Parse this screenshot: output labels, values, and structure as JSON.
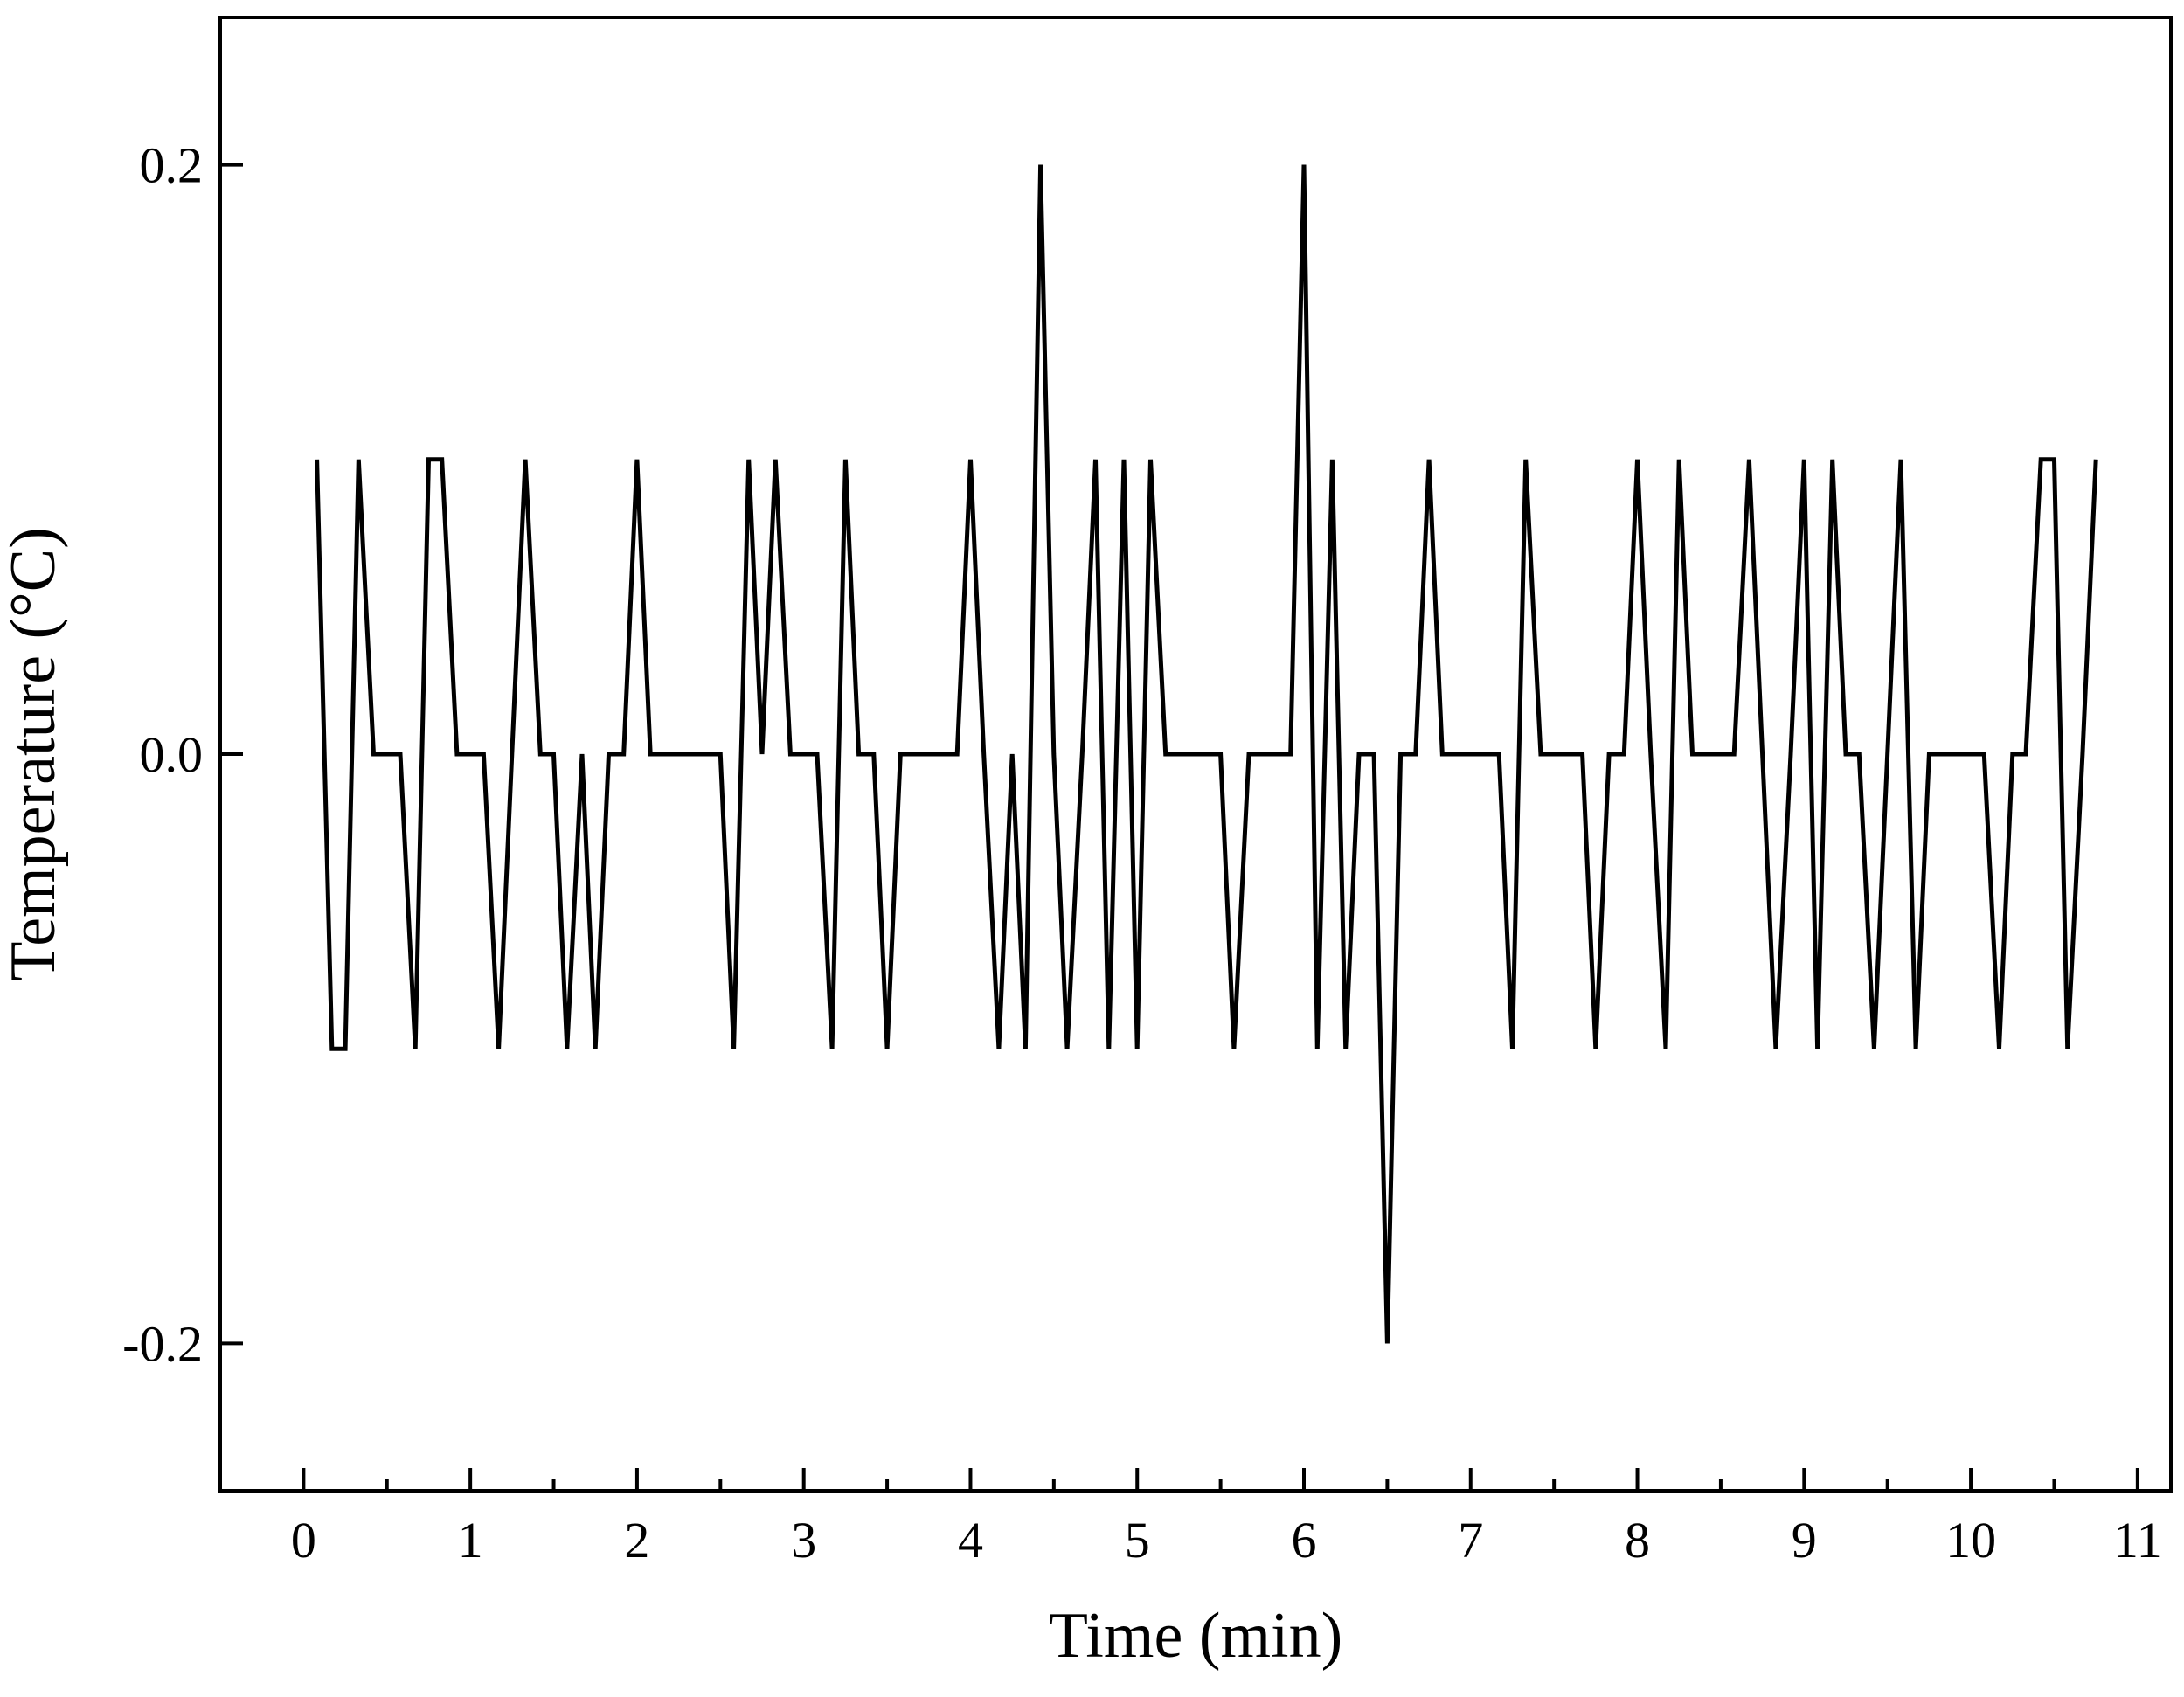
{
  "chart_data": {
    "type": "line",
    "title": "",
    "xlabel": "Time (min)",
    "ylabel": "Temperature (°C)",
    "xlim": [
      -0.5,
      11.2
    ],
    "ylim": [
      -0.25,
      0.25
    ],
    "grid": false,
    "colors": {
      "line": "#000000",
      "axis": "#000000",
      "background": "#ffffff"
    },
    "x_ticks": [
      0,
      1,
      2,
      3,
      4,
      5,
      6,
      7,
      8,
      9,
      10,
      11
    ],
    "x_tick_labels": [
      "0",
      "1",
      "2",
      "3",
      "4",
      "5",
      "6",
      "7",
      "8",
      "9",
      "10",
      "11"
    ],
    "x_minor_ticks": [
      0.5,
      1.5,
      2.5,
      3.5,
      4.5,
      5.5,
      6.5,
      7.5,
      8.5,
      9.5,
      10.5
    ],
    "y_ticks": [
      -0.2,
      0.0,
      0.2
    ],
    "y_tick_labels": [
      "-0.2",
      "0.0",
      "0.2"
    ],
    "series": [
      {
        "x": [
          0.08,
          0.17,
          0.25,
          0.33,
          0.42,
          0.5,
          0.58,
          0.67,
          0.75,
          0.83,
          0.92,
          1.0,
          1.08,
          1.17,
          1.25,
          1.33,
          1.42,
          1.5,
          1.58,
          1.67,
          1.75,
          1.83,
          1.92,
          2.0,
          2.08,
          2.17,
          2.25,
          2.33,
          2.42,
          2.5,
          2.58,
          2.67,
          2.75,
          2.83,
          2.92,
          3.0,
          3.08,
          3.17,
          3.25,
          3.33,
          3.42,
          3.5,
          3.58,
          3.67,
          3.75,
          3.83,
          3.92,
          4.0,
          4.08,
          4.17,
          4.25,
          4.33,
          4.42,
          4.5,
          4.58,
          4.67,
          4.75,
          4.83,
          4.92,
          5.0,
          5.08,
          5.17,
          5.25,
          5.33,
          5.42,
          5.5,
          5.58,
          5.67,
          5.75,
          5.83,
          5.92,
          6.0,
          6.08,
          6.17,
          6.25,
          6.33,
          6.42,
          6.5,
          6.58,
          6.67,
          6.75,
          6.83,
          6.92,
          7.0,
          7.08,
          7.17,
          7.25,
          7.33,
          7.42,
          7.5,
          7.58,
          7.67,
          7.75,
          7.83,
          7.92,
          8.0,
          8.08,
          8.17,
          8.25,
          8.33,
          8.42,
          8.5,
          8.58,
          8.67,
          8.75,
          8.83,
          8.92,
          9.0,
          9.08,
          9.17,
          9.25,
          9.33,
          9.42,
          9.5,
          9.58,
          9.67,
          9.75,
          9.83,
          9.92,
          10.0,
          10.08,
          10.17,
          10.25,
          10.33,
          10.42,
          10.5,
          10.58,
          10.67,
          10.75
        ],
        "y": [
          0.1,
          -0.1,
          -0.1,
          0.1,
          0.0,
          0.0,
          0.0,
          -0.1,
          0.1,
          0.1,
          0.0,
          0.0,
          0.0,
          -0.1,
          0.0,
          0.1,
          0.0,
          0.0,
          -0.1,
          0.0,
          -0.1,
          0.0,
          0.0,
          0.1,
          0.0,
          0.0,
          0.0,
          0.0,
          0.0,
          0.0,
          -0.1,
          0.1,
          0.0,
          0.1,
          0.0,
          0.0,
          0.0,
          -0.1,
          0.1,
          0.0,
          0.0,
          -0.1,
          0.0,
          0.0,
          0.0,
          0.0,
          0.0,
          0.1,
          0.0,
          -0.1,
          0.0,
          -0.1,
          0.2,
          0.0,
          -0.1,
          0.0,
          0.1,
          -0.1,
          0.1,
          -0.1,
          0.1,
          0.0,
          0.0,
          0.0,
          0.0,
          0.0,
          -0.1,
          0.0,
          0.0,
          0.0,
          0.0,
          0.2,
          -0.1,
          0.1,
          -0.1,
          0.0,
          0.0,
          -0.2,
          0.0,
          0.0,
          0.1,
          0.0,
          0.0,
          0.0,
          0.0,
          0.0,
          -0.1,
          0.1,
          0.0,
          0.0,
          0.0,
          0.0,
          -0.1,
          0.0,
          0.0,
          0.1,
          0.0,
          -0.1,
          0.1,
          0.0,
          0.0,
          0.0,
          0.0,
          0.1,
          0.0,
          -0.1,
          0.0,
          0.1,
          -0.1,
          0.1,
          0.0,
          0.0,
          -0.1,
          0.0,
          0.1,
          -0.1,
          0.0,
          0.0,
          0.0,
          0.0,
          0.0,
          -0.1,
          0.0,
          0.0,
          0.1,
          0.1,
          -0.1,
          0.0,
          0.1
        ]
      }
    ]
  }
}
